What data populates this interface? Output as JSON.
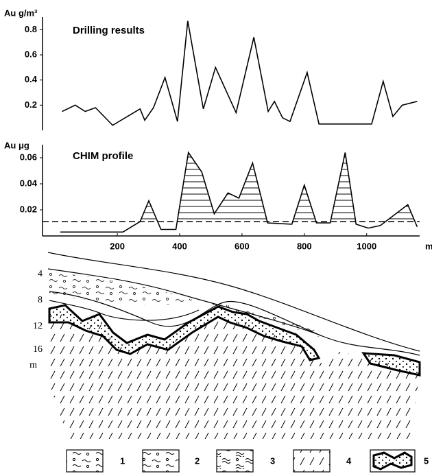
{
  "chart_data": [
    {
      "type": "line",
      "title": "Drilling results",
      "ylabel": "Au g/m³",
      "color": "#000000",
      "x": [
        23,
        65,
        97,
        130,
        185,
        273,
        288,
        316,
        353,
        393,
        426,
        476,
        515,
        581,
        638,
        684,
        704,
        730,
        754,
        809,
        847,
        1016,
        1053,
        1084,
        1114,
        1162
      ],
      "values": [
        0.15,
        0.2,
        0.15,
        0.18,
        0.04,
        0.17,
        0.08,
        0.18,
        0.42,
        0.07,
        0.87,
        0.17,
        0.5,
        0.14,
        0.74,
        0.15,
        0.23,
        0.1,
        0.07,
        0.46,
        0.05,
        0.05,
        0.39,
        0.11,
        0.2,
        0.23
      ],
      "xlim": [
        -40,
        1170
      ],
      "ylim": [
        0,
        0.9
      ],
      "yticks": [
        0.2,
        0.4,
        0.6,
        0.8
      ]
    },
    {
      "type": "line",
      "title": "CHIM  profile",
      "ylabel": "Au μg",
      "xlabel": "m",
      "color": "#000000",
      "threshold": 0.011,
      "x": [
        17,
        218,
        273,
        301,
        340,
        388,
        428,
        471,
        511,
        555,
        590,
        634,
        682,
        760,
        800,
        839,
        883,
        931,
        966,
        1005,
        1044,
        1132,
        1162
      ],
      "values": [
        0.003,
        0.003,
        0.011,
        0.027,
        0.005,
        0.005,
        0.064,
        0.049,
        0.017,
        0.033,
        0.029,
        0.056,
        0.01,
        0.009,
        0.039,
        0.01,
        0.01,
        0.064,
        0.009,
        0.006,
        0.008,
        0.024,
        0.007
      ],
      "xlim": [
        -40,
        1170
      ],
      "ylim": [
        0,
        0.07
      ],
      "yticks": [
        0.02,
        0.04,
        0.06
      ],
      "xticks": [
        200,
        400,
        600,
        800,
        1000
      ]
    }
  ],
  "section": {
    "yticks": [
      "4",
      "8",
      "12",
      "16"
    ],
    "ylabel": "m"
  },
  "legend": [
    "1",
    "2",
    "3",
    "4",
    "5"
  ]
}
